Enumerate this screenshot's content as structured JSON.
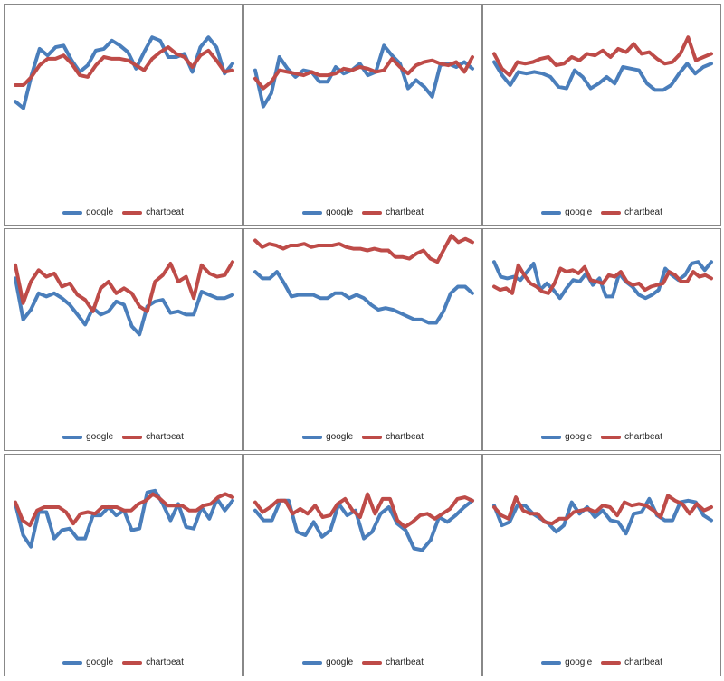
{
  "colors": {
    "google": "#4a7ebb",
    "chartbeat": "#be4b48"
  },
  "chart_data": [
    {
      "type": "line",
      "legend": "bottom-center",
      "grid": false,
      "ylim": [
        0,
        100
      ],
      "series": [
        {
          "name": "google",
          "values": [
            51,
            47,
            67,
            83,
            79,
            84,
            85,
            76,
            69,
            73,
            82,
            83,
            88,
            85,
            81,
            71,
            81,
            90,
            88,
            78,
            78,
            80,
            69,
            84,
            90,
            84,
            68,
            74
          ]
        },
        {
          "name": "chartbeat",
          "values": [
            61,
            61,
            66,
            73,
            77,
            77,
            79,
            74,
            67,
            66,
            73,
            78,
            77,
            77,
            76,
            73,
            70,
            77,
            81,
            84,
            80,
            78,
            72,
            79,
            82,
            76,
            69,
            70
          ]
        }
      ]
    },
    {
      "type": "line",
      "legend": "bottom-center",
      "grid": false,
      "ylim": [
        0,
        100
      ],
      "series": [
        {
          "name": "google",
          "values": [
            70,
            48,
            56,
            78,
            71,
            66,
            70,
            69,
            63,
            63,
            72,
            68,
            70,
            74,
            67,
            69,
            85,
            79,
            74,
            59,
            64,
            60,
            54,
            73,
            74,
            72,
            75,
            71
          ]
        },
        {
          "name": "chartbeat",
          "values": [
            65,
            59,
            63,
            70,
            69,
            68,
            67,
            69,
            67,
            67,
            68,
            71,
            70,
            72,
            71,
            69,
            70,
            77,
            72,
            68,
            73,
            75,
            76,
            74,
            73,
            75,
            69,
            78
          ]
        }
      ]
    },
    {
      "type": "line",
      "legend": "bottom-center",
      "grid": false,
      "ylim": [
        0,
        100
      ],
      "series": [
        {
          "name": "google",
          "values": [
            75,
            67,
            61,
            69,
            68,
            69,
            68,
            66,
            60,
            59,
            70,
            66,
            59,
            62,
            66,
            62,
            72,
            71,
            70,
            62,
            58,
            58,
            61,
            68,
            74,
            68,
            72,
            74
          ]
        },
        {
          "name": "chartbeat",
          "values": [
            80,
            71,
            67,
            75,
            74,
            75,
            77,
            78,
            73,
            74,
            78,
            76,
            80,
            79,
            82,
            78,
            83,
            81,
            86,
            80,
            81,
            77,
            74,
            75,
            80,
            90,
            76,
            78,
            80
          ]
        }
      ]
    },
    {
      "type": "line",
      "legend": "bottom-center",
      "grid": false,
      "ylim": [
        0,
        100
      ],
      "series": [
        {
          "name": "google",
          "values": [
            80,
            55,
            61,
            71,
            69,
            71,
            68,
            64,
            58,
            52,
            62,
            58,
            60,
            66,
            64,
            51,
            46,
            63,
            66,
            67,
            59,
            60,
            58,
            58,
            72,
            70,
            68,
            68,
            70
          ]
        },
        {
          "name": "chartbeat",
          "values": [
            88,
            65,
            78,
            85,
            81,
            83,
            75,
            77,
            70,
            67,
            60,
            74,
            78,
            71,
            74,
            71,
            63,
            60,
            78,
            82,
            89,
            78,
            81,
            68,
            88,
            83,
            81,
            82,
            90
          ]
        }
      ]
    },
    {
      "type": "line",
      "legend": "bottom-center",
      "grid": false,
      "ylim": [
        0,
        100
      ],
      "series": [
        {
          "name": "google",
          "values": [
            84,
            80,
            80,
            84,
            77,
            69,
            70,
            70,
            70,
            68,
            68,
            71,
            71,
            68,
            70,
            68,
            64,
            61,
            62,
            61,
            59,
            57,
            55,
            55,
            53,
            53,
            60,
            71,
            75,
            75,
            71
          ]
        },
        {
          "name": "chartbeat",
          "values": [
            103,
            99,
            101,
            100,
            98,
            100,
            100,
            101,
            99,
            100,
            100,
            100,
            101,
            99,
            98,
            98,
            97,
            98,
            97,
            97,
            93,
            93,
            92,
            95,
            97,
            92,
            90,
            98,
            106,
            102,
            104,
            102
          ]
        }
      ]
    },
    {
      "type": "line",
      "legend": "bottom-center",
      "grid": false,
      "ylim": [
        0,
        100
      ],
      "series": [
        {
          "name": "google",
          "values": [
            90,
            81,
            80,
            81,
            79,
            84,
            89,
            73,
            77,
            73,
            68,
            74,
            79,
            78,
            83,
            76,
            80,
            69,
            69,
            83,
            78,
            75,
            70,
            68,
            70,
            73,
            86,
            82,
            79,
            82,
            89,
            90,
            85,
            90
          ]
        },
        {
          "name": "chartbeat",
          "values": [
            75,
            73,
            74,
            71,
            88,
            82,
            77,
            75,
            72,
            71,
            77,
            86,
            84,
            85,
            83,
            87,
            79,
            78,
            77,
            82,
            81,
            84,
            78,
            76,
            77,
            73,
            75,
            76,
            77,
            84,
            82,
            78,
            78,
            84,
            81,
            82,
            80
          ]
        }
      ]
    },
    {
      "type": "line",
      "legend": "bottom-center",
      "grid": false,
      "ylim": [
        0,
        100
      ],
      "series": [
        {
          "name": "google",
          "values": [
            80,
            61,
            54,
            75,
            75,
            59,
            64,
            65,
            59,
            59,
            73,
            73,
            78,
            73,
            76,
            64,
            65,
            87,
            88,
            80,
            70,
            80,
            66,
            65,
            78,
            71,
            83,
            76,
            82
          ]
        },
        {
          "name": "chartbeat",
          "values": [
            81,
            70,
            67,
            76,
            78,
            78,
            78,
            75,
            68,
            74,
            75,
            74,
            78,
            78,
            78,
            76,
            76,
            80,
            82,
            86,
            83,
            79,
            79,
            79,
            76,
            76,
            79,
            80,
            84,
            86,
            84
          ]
        }
      ]
    },
    {
      "type": "line",
      "legend": "bottom-center",
      "grid": false,
      "ylim": [
        0,
        100
      ],
      "series": [
        {
          "name": "google",
          "values": [
            76,
            70,
            70,
            82,
            82,
            63,
            61,
            69,
            60,
            64,
            80,
            73,
            76,
            59,
            63,
            74,
            78,
            68,
            64,
            53,
            52,
            58,
            72,
            69,
            73,
            78,
            82
          ]
        },
        {
          "name": "chartbeat",
          "values": [
            81,
            75,
            78,
            82,
            82,
            74,
            77,
            74,
            79,
            72,
            73,
            80,
            83,
            76,
            72,
            86,
            74,
            83,
            83,
            70,
            66,
            69,
            73,
            74,
            71,
            74,
            77,
            83,
            84,
            82
          ]
        }
      ]
    },
    {
      "type": "line",
      "legend": "bottom-center",
      "grid": false,
      "ylim": [
        0,
        100
      ],
      "series": [
        {
          "name": "google",
          "values": [
            79,
            67,
            69,
            79,
            79,
            74,
            71,
            68,
            63,
            67,
            81,
            74,
            78,
            72,
            76,
            70,
            69,
            62,
            74,
            75,
            83,
            73,
            70,
            70,
            81,
            82,
            81,
            73,
            70
          ]
        },
        {
          "name": "chartbeat",
          "values": [
            78,
            73,
            71,
            84,
            76,
            74,
            74,
            69,
            68,
            71,
            71,
            75,
            76,
            77,
            75,
            79,
            78,
            73,
            81,
            79,
            80,
            79,
            76,
            72,
            85,
            82,
            80,
            74,
            80,
            76,
            78
          ]
        }
      ]
    }
  ]
}
